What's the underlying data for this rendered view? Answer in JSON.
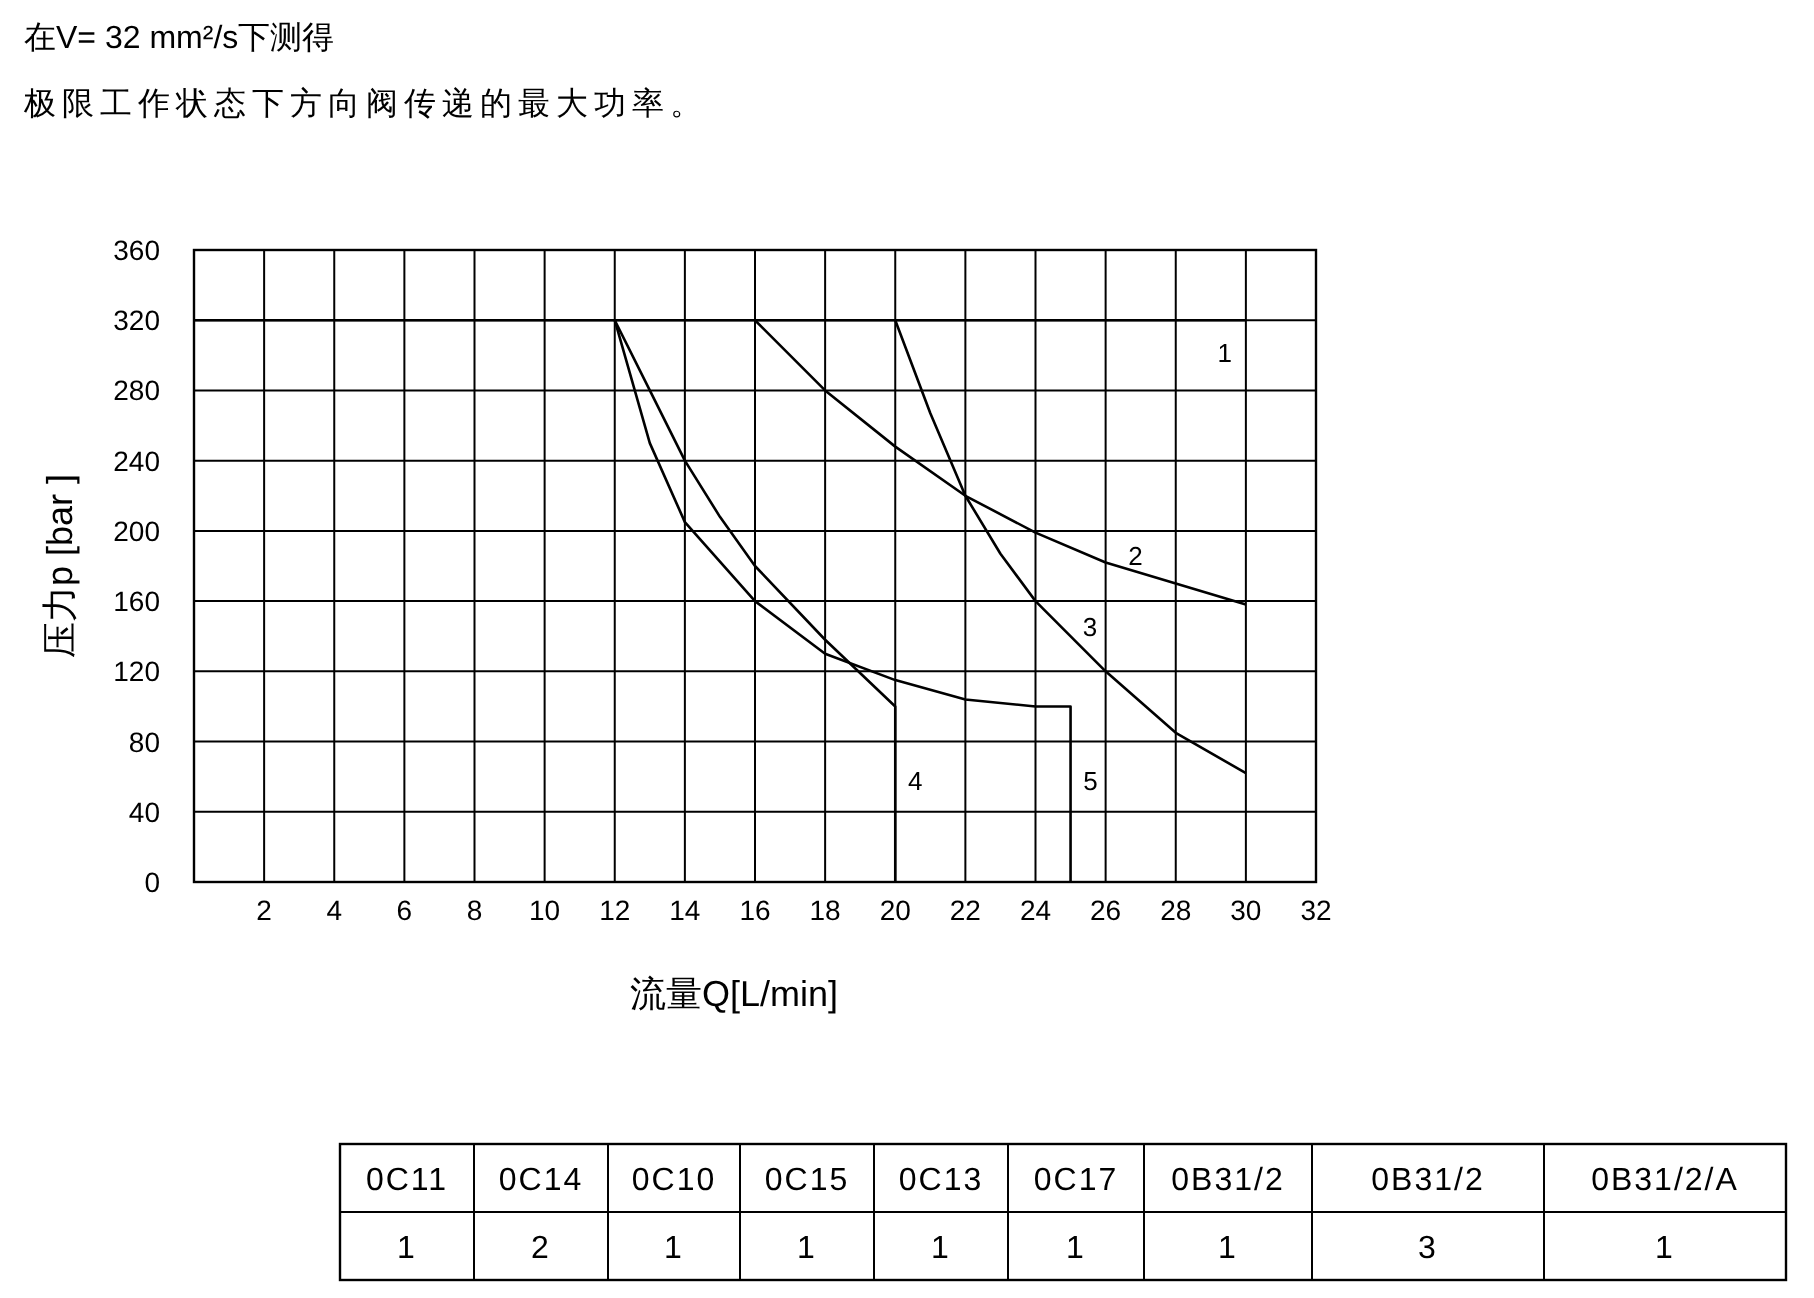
{
  "chart_data": [
    {
      "type": "line",
      "title": "在V= 32 mm²/s下测得",
      "subtitle": "极限工作状态下方向阀传递的最大功率。",
      "xlabel": "流量Q[L/min]",
      "ylabel": "压力p [bar ]",
      "xlim": [
        0,
        32
      ],
      "ylim": [
        0,
        360
      ],
      "xticks": [
        2,
        4,
        6,
        8,
        10,
        12,
        14,
        16,
        18,
        20,
        22,
        24,
        26,
        28,
        30,
        32
      ],
      "yticks": [
        0,
        40,
        80,
        120,
        160,
        200,
        240,
        280,
        320,
        360
      ],
      "grid": true,
      "series": [
        {
          "name": "1",
          "color": "#000000",
          "x": [
            0,
            30
          ],
          "values": [
            320,
            320
          ]
        },
        {
          "name": "2",
          "color": "#000000",
          "x": [
            16,
            18,
            20,
            22,
            24,
            26,
            28,
            30
          ],
          "values": [
            320,
            280,
            248,
            220,
            199,
            182,
            170,
            158
          ]
        },
        {
          "name": "3",
          "color": "#000000",
          "x": [
            20,
            21,
            22,
            23,
            24,
            26,
            28,
            30
          ],
          "values": [
            320,
            267,
            220,
            187,
            160,
            120,
            85,
            62
          ]
        },
        {
          "name": "4",
          "color": "#000000",
          "x": [
            12,
            13,
            14,
            15,
            16,
            18,
            20,
            20
          ],
          "values": [
            320,
            280,
            240,
            208,
            180,
            138,
            100,
            0
          ]
        },
        {
          "name": "5",
          "color": "#000000",
          "x": [
            12,
            13,
            14,
            16,
            18,
            20,
            22,
            24,
            25,
            25
          ],
          "values": [
            320,
            250,
            205,
            160,
            130,
            115,
            104,
            100,
            100,
            0
          ]
        }
      ]
    },
    {
      "type": "other",
      "annotations": [
        "0C11",
        "0C14",
        "0C10",
        "0C15",
        "0C13",
        "0C17",
        "0B31/2",
        "0B31/2",
        "0B31/2/A",
        "1",
        "2",
        "1",
        "1",
        "1",
        "1",
        "1",
        "3",
        "1"
      ]
    }
  ]
}
